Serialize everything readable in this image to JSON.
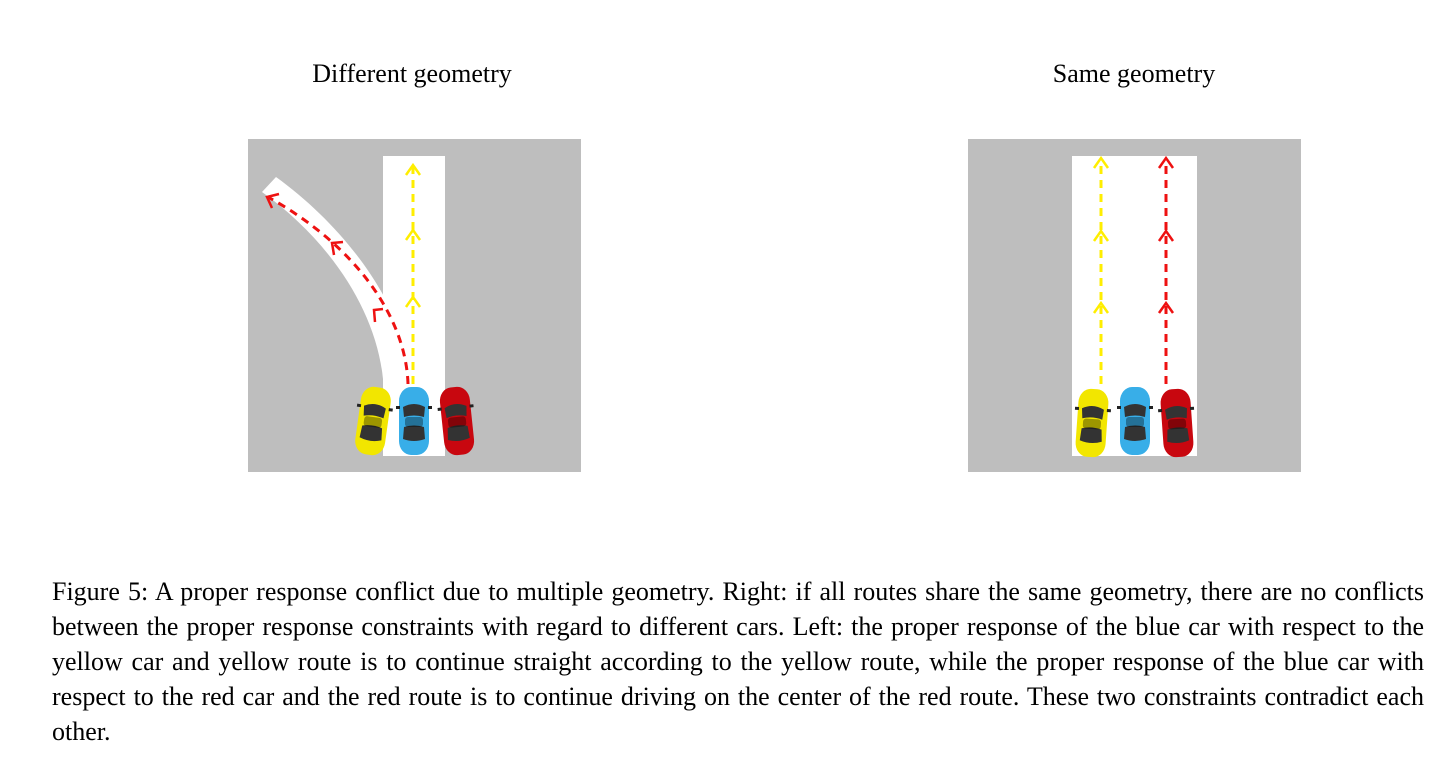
{
  "figure": {
    "left_panel": {
      "title": "Different geometry"
    },
    "right_panel": {
      "title": "Same geometry"
    },
    "colors": {
      "ground": "#bebebe",
      "road": "#ffffff",
      "yellow_route": "#ffee00",
      "red_route": "#ee1111",
      "yellow_car": "#f2e600",
      "blue_car": "#38aee8",
      "red_car": "#c8070f"
    },
    "cars": [
      "yellow-car",
      "blue-car",
      "red-car"
    ],
    "caption": "Figure 5: A proper response conflict due to multiple geometry. Right: if all routes share the same geometry, there are no conflicts between the proper response constraints with regard to different cars. Left: the proper response of the blue car with respect to the yellow car and yellow route is to continue straight according to the yellow route, while the proper response of the blue car with respect to the red car and the red route is to continue driving on the center of the red route. These two constraints contradict each other."
  }
}
